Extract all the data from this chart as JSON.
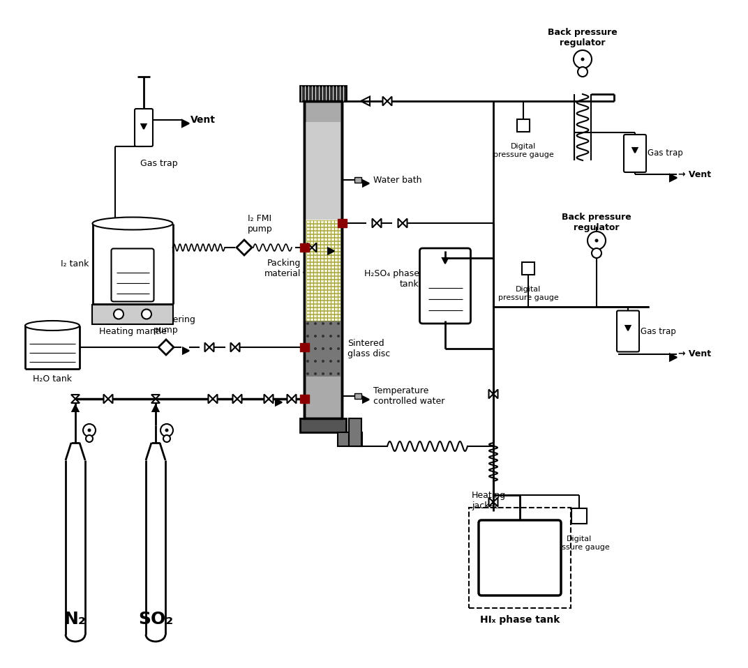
{
  "bg_color": "#ffffff",
  "line_color": "#000000",
  "red_color": "#8B0000",
  "labels": {
    "vent_tl": "Vent",
    "gas_trap_tl": "Gas trap",
    "i2_tank": "I₂ tank",
    "heating_mantle": "Heating mantle",
    "i2_fmi_pump": "I₂ FMI\npump",
    "water_bath": "Water bath",
    "packing_material": "Packing\nmaterial",
    "sintered_glass": "Sintered\nglass disc",
    "temp_water": "Temperature\ncontrolled water",
    "h2so4_tank": "H₂SO₄ phase\ntank",
    "back_pressure1": "Back pressure\nregulator",
    "digital_pressure1": "Digital\npressure gauge",
    "vent_tr": "→ Vent",
    "gas_trap_tr": "Gas trap",
    "back_pressure2": "Back pressure\nregulator",
    "digital_pressure2": "Digital\npressure gauge",
    "vent_mr": "→ Vent",
    "gas_trap_mr": "Gas trap",
    "h2o_tank": "H₂O tank",
    "h2o_metering": "H₂O Metering\npump",
    "n2_label": "N₂",
    "so2_label": "SO₂",
    "hix_tank": "HIₓ phase tank",
    "heating_jacket": "Heating\njacket",
    "digital_pressure3": "Digital\npressure gauge"
  }
}
